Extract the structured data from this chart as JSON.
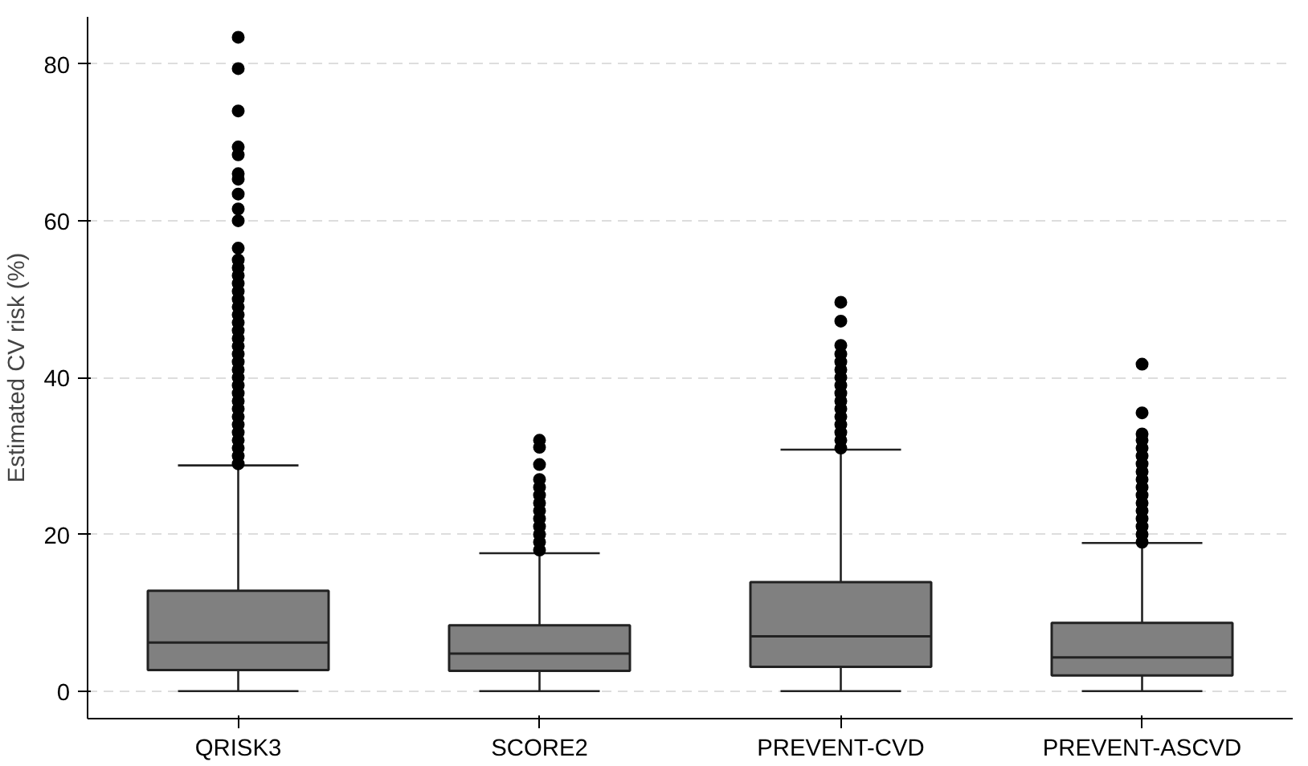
{
  "chart_data": {
    "type": "box",
    "ylabel": "Estimated CV risk (%)",
    "categories": [
      "QRISK3",
      "SCORE2",
      "PREVENT-CVD",
      "PREVENT-ASCVD"
    ],
    "color": "#808080",
    "ylim": [
      -3.5,
      86
    ],
    "yticks": [
      0,
      20,
      40,
      60,
      80
    ],
    "grid": "y",
    "marker": "circle",
    "boxes": [
      {
        "low": 0,
        "q1": 2.7,
        "median": 6.2,
        "q3": 12.8,
        "high": 28.8,
        "outliers": [
          29,
          30,
          31,
          32,
          33,
          34,
          35,
          36,
          37,
          38,
          39,
          40,
          41,
          42,
          43,
          44,
          45,
          46,
          47,
          48,
          49,
          50,
          51,
          52,
          53,
          54,
          55,
          56.5,
          60.0,
          61.5,
          63.4,
          65.3,
          66.0,
          68.4,
          69.4,
          74.0,
          79.4,
          83.4
        ]
      },
      {
        "low": 0,
        "q1": 2.6,
        "median": 4.8,
        "q3": 8.4,
        "high": 17.6,
        "outliers": [
          18,
          19,
          20,
          21,
          22,
          23,
          24,
          25,
          26,
          27.0,
          28.9,
          31.1,
          32.0
        ]
      },
      {
        "low": 0,
        "q1": 3.1,
        "median": 7.0,
        "q3": 13.9,
        "high": 30.8,
        "outliers": [
          31,
          32,
          33,
          34,
          35,
          36,
          37,
          38,
          39,
          40,
          41,
          42,
          43,
          44.1,
          47.2,
          49.6
        ]
      },
      {
        "low": 0,
        "q1": 2.0,
        "median": 4.3,
        "q3": 8.7,
        "high": 18.9,
        "outliers": [
          19,
          20,
          21,
          22,
          23,
          24,
          25,
          26,
          27,
          28,
          29,
          30,
          31,
          32,
          32.8,
          35.5,
          41.7
        ]
      }
    ]
  }
}
